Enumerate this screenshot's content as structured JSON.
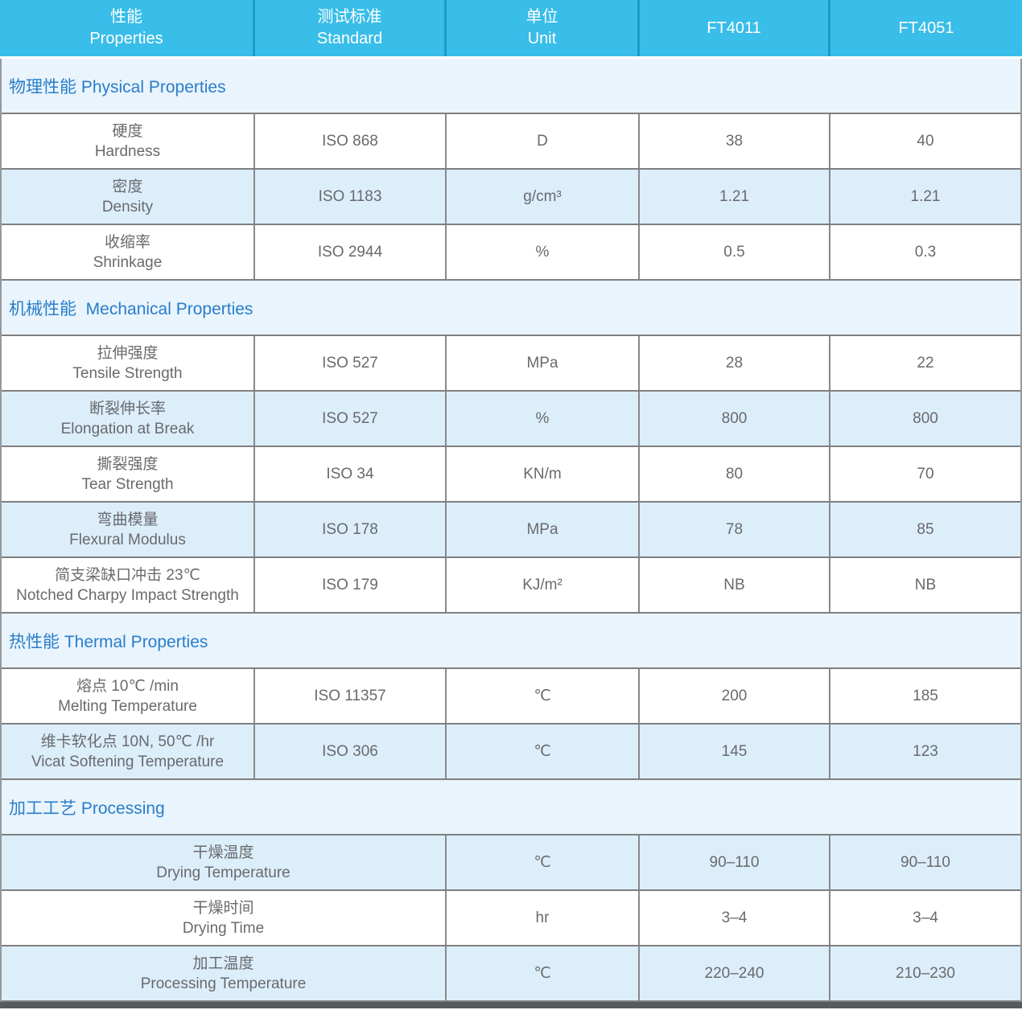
{
  "header": {
    "columns": [
      {
        "zh": "性能",
        "en": "Properties"
      },
      {
        "zh": "测试标准",
        "en": "Standard"
      },
      {
        "zh": "单位",
        "en": "Unit"
      },
      {
        "label": "FT4011"
      },
      {
        "label": "FT4051"
      }
    ]
  },
  "sections": [
    {
      "title": "物理性能 Physical Properties",
      "columns_merged": false,
      "rows": [
        {
          "zh": "硬度",
          "en": "Hardness",
          "standard": "ISO 868",
          "unit": "D",
          "ft4011": "38",
          "ft4051": "40",
          "shade": false
        },
        {
          "zh": "密度",
          "en": "Density",
          "standard": "ISO 1183",
          "unit": "g/cm³",
          "ft4011": "1.21",
          "ft4051": "1.21",
          "shade": true
        },
        {
          "zh": "收缩率",
          "en": "Shrinkage",
          "standard": "ISO 2944",
          "unit": "%",
          "ft4011": "0.5",
          "ft4051": "0.3",
          "shade": false
        }
      ]
    },
    {
      "title": "机械性能  Mechanical Properties",
      "columns_merged": false,
      "rows": [
        {
          "zh": "拉伸强度",
          "en": "Tensile Strength",
          "standard": "ISO 527",
          "unit": "MPa",
          "ft4011": "28",
          "ft4051": "22",
          "shade": false
        },
        {
          "zh": "断裂伸长率",
          "en": "Elongation at Break",
          "standard": "ISO 527",
          "unit": "%",
          "ft4011": "800",
          "ft4051": "800",
          "shade": true
        },
        {
          "zh": "撕裂强度",
          "en": "Tear Strength",
          "standard": "ISO 34",
          "unit": "KN/m",
          "ft4011": "80",
          "ft4051": "70",
          "shade": false
        },
        {
          "zh": "弯曲模量",
          "en": "Flexural Modulus",
          "standard": "ISO 178",
          "unit": "MPa",
          "ft4011": "78",
          "ft4051": "85",
          "shade": true
        },
        {
          "zh": "简支梁缺口冲击 23℃",
          "en": "Notched Charpy Impact Strength",
          "standard": "ISO 179",
          "unit": "KJ/m²",
          "ft4011": "NB",
          "ft4051": "NB",
          "shade": false
        }
      ]
    },
    {
      "title": "热性能 Thermal Properties",
      "columns_merged": false,
      "rows": [
        {
          "zh": "熔点 10℃ /min",
          "en": "Melting Temperature",
          "standard": "ISO 11357",
          "unit": "℃",
          "ft4011": "200",
          "ft4051": "185",
          "shade": false
        },
        {
          "zh": "维卡软化点 10N, 50℃ /hr",
          "en": "Vicat Softening Temperature",
          "standard": "ISO 306",
          "unit": "℃",
          "ft4011": "145",
          "ft4051": "123",
          "shade": true
        }
      ]
    },
    {
      "title": "加工工艺 Processing",
      "columns_merged": true,
      "rows": [
        {
          "zh": "干燥温度",
          "en": "Drying Temperature",
          "standard": "",
          "unit": "℃",
          "ft4011": "90–110",
          "ft4051": "90–110",
          "shade": true
        },
        {
          "zh": "干燥时间",
          "en": "Drying Time",
          "standard": "",
          "unit": "hr",
          "ft4011": "3–4",
          "ft4051": "3–4",
          "shade": false
        },
        {
          "zh": "加工温度",
          "en": "Processing Temperature",
          "standard": "",
          "unit": "℃",
          "ft4011": "220–240",
          "ft4051": "210–230",
          "shade": true
        }
      ]
    }
  ],
  "colors": {
    "header_bg": "#39bde9",
    "header_separator": "#1d9cc8",
    "header_text": "#ffffff",
    "section_bg": "#e9f4fc",
    "section_text": "#2a7dca",
    "stripe_bg": "#dceefa",
    "row_bg": "#ffffff",
    "body_text": "#696a6d",
    "grid_line": "#7e7f81",
    "bottom_bar": "#58595b"
  }
}
